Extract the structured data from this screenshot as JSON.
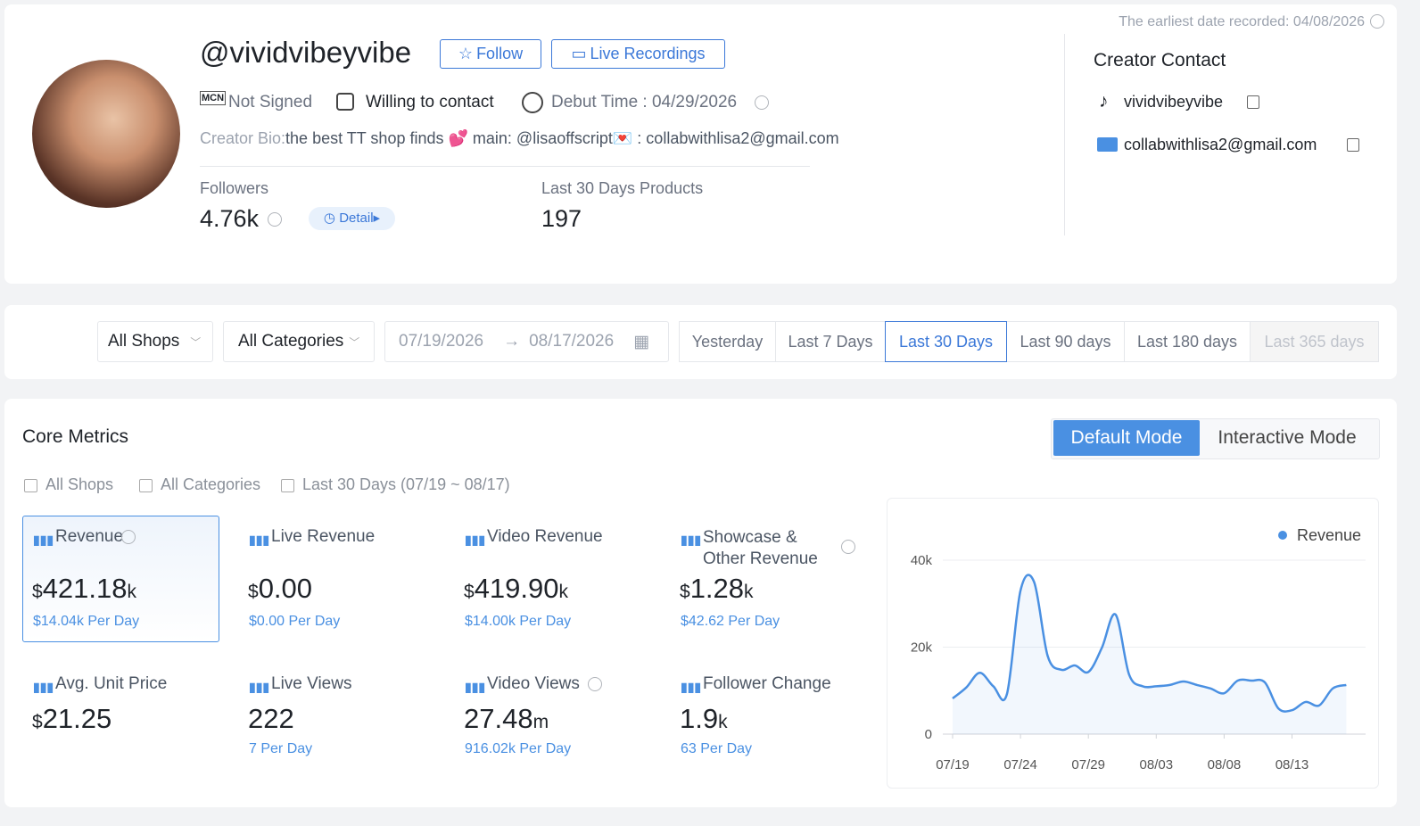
{
  "header": {
    "earliest": "The earliest date recorded: 04/08/2026",
    "handle": "@vividvibeyvibe",
    "follow": "Follow",
    "live_recordings": "Live Recordings",
    "mcn": "MCN",
    "signed": "Not Signed",
    "contact_willing": "Willing to contact",
    "debut": "Debut Time : 04/29/2026",
    "bio_label": "Creator Bio:",
    "bio": "the best TT shop finds 💕 main: @lisaoffscript💌 : collabwithlisa2@gmail.com",
    "followers_label": "Followers",
    "followers": "4.76k",
    "detail": "Detail",
    "products_label": "Last 30 Days Products",
    "products": "197"
  },
  "contact": {
    "title": "Creator Contact",
    "tiktok": "vividvibeyvibe",
    "email": "collabwithlisa2@gmail.com"
  },
  "filters": {
    "shops": "All Shops",
    "categories": "All Categories",
    "start": "07/19/2026",
    "end": "08/17/2026",
    "ranges": [
      "Yesterday",
      "Last 7 Days",
      "Last 30 Days",
      "Last 90 days",
      "Last 180 days",
      "Last 365 days"
    ],
    "active": 2,
    "disabled": 5
  },
  "core": {
    "title": "Core Metrics",
    "modes": [
      "Default Mode",
      "Interactive Mode"
    ],
    "tags": [
      "All Shops",
      "All Categories",
      "Last 30 Days (07/19 ~ 08/17)"
    ],
    "metrics": [
      {
        "label": "Revenue",
        "prefix": "$",
        "value": "421.18",
        "unit": "k",
        "sub": "$14.04k Per Day",
        "help": true,
        "selected": true
      },
      {
        "label": "Live Revenue",
        "prefix": "$",
        "value": "0.00",
        "sub": "$0.00 Per Day"
      },
      {
        "label": "Video Revenue",
        "prefix": "$",
        "value": "419.90",
        "unit": "k",
        "sub": "$14.00k Per Day"
      },
      {
        "label": "Showcase & Other Revenue",
        "prefix": "$",
        "value": "1.28",
        "unit": "k",
        "sub": "$42.62 Per Day",
        "help": true
      },
      {
        "label": "Avg. Unit Price",
        "prefix": "$",
        "value": "21.25"
      },
      {
        "label": "Live Views",
        "value": "222",
        "sub": "7 Per Day"
      },
      {
        "label": "Video Views",
        "value": "27.48",
        "unit": "m",
        "sub": "916.02k Per Day",
        "help": true
      },
      {
        "label": "Follower Change",
        "value": "1.9",
        "unit": "k",
        "sub": "63 Per Day"
      }
    ]
  },
  "chart_data": {
    "type": "line",
    "categories": [
      "07/19",
      null,
      null,
      null,
      null,
      "07/24",
      null,
      null,
      null,
      null,
      "07/29",
      null,
      null,
      null,
      null,
      "08/03",
      null,
      null,
      null,
      null,
      "08/08",
      null,
      null,
      null,
      null,
      "08/13",
      null,
      null,
      null,
      null
    ],
    "series": [
      {
        "name": "Revenue",
        "color": "#4a90e2",
        "values": [
          8200,
          10700,
          14100,
          11000,
          9200,
          33000,
          35000,
          18000,
          14800,
          15800,
          14300,
          19900,
          27500,
          13700,
          11000,
          11000,
          11300,
          12100,
          11300,
          10500,
          9400,
          12300,
          12300,
          11900,
          5900,
          5500,
          7400,
          6600,
          10500,
          11300
        ]
      }
    ],
    "ylim": [
      0,
      40000
    ],
    "yticks": [
      {
        "value": 0,
        "label": "0"
      },
      {
        "value": 20000,
        "label": "20k"
      },
      {
        "value": 40000,
        "label": "40k"
      }
    ],
    "grid": true,
    "legend": "top-right"
  }
}
